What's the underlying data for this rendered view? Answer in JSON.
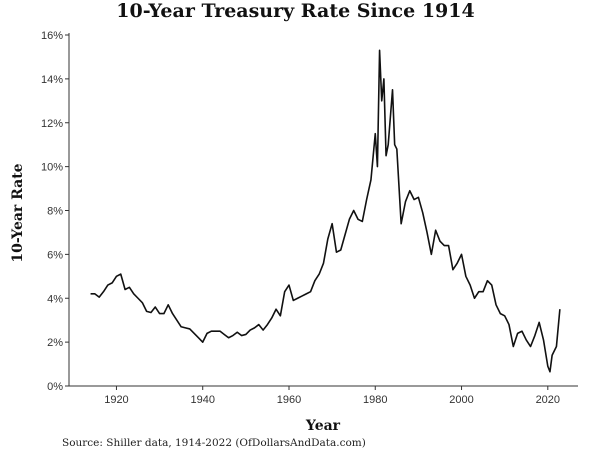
{
  "chart_data": {
    "type": "line",
    "title": "10-Year Treasury Rate Since 1914",
    "xlabel": "Year",
    "ylabel": "10-Year Rate",
    "source": "Source: Shiller data, 1914-2022 (OfDollarsAndData.com)",
    "xlim": [
      1909,
      2027
    ],
    "ylim": [
      0,
      16
    ],
    "x_ticks": [
      1920,
      1940,
      1960,
      1980,
      2000,
      2020
    ],
    "y_ticks": [
      0,
      2,
      4,
      6,
      8,
      10,
      12,
      14,
      16
    ],
    "y_tick_labels": [
      "0%",
      "2%",
      "4%",
      "6%",
      "8%",
      "10%",
      "12%",
      "14%",
      "16%"
    ],
    "grid": false,
    "series": [
      {
        "color": "#111111",
        "x": [
          1914,
          1915,
          1916,
          1917,
          1918,
          1919,
          1920,
          1921,
          1922,
          1923,
          1924,
          1925,
          1926,
          1927,
          1928,
          1929,
          1930,
          1931,
          1932,
          1933,
          1934,
          1935,
          1936,
          1937,
          1938,
          1939,
          1940,
          1941,
          1942,
          1943,
          1944,
          1945,
          1946,
          1947,
          1948,
          1949,
          1950,
          1951,
          1952,
          1953,
          1954,
          1955,
          1956,
          1957,
          1958,
          1959,
          1960,
          1961,
          1962,
          1963,
          1964,
          1965,
          1966,
          1967,
          1968,
          1969,
          1970,
          1971,
          1972,
          1973,
          1974,
          1975,
          1976,
          1977,
          1978,
          1979,
          1980,
          1980.5,
          1981,
          1981.5,
          1982,
          1982.5,
          1983,
          1984,
          1984.5,
          1985,
          1986,
          1987,
          1988,
          1989,
          1990,
          1991,
          1992,
          1993,
          1994,
          1995,
          1996,
          1997,
          1998,
          1999,
          2000,
          2001,
          2002,
          2003,
          2004,
          2005,
          2006,
          2007,
          2008,
          2009,
          2010,
          2011,
          2012,
          2013,
          2014,
          2015,
          2016,
          2017,
          2018,
          2019,
          2020,
          2020.5,
          2021,
          2022,
          2022.8
        ],
        "y": [
          4.2,
          4.2,
          4.05,
          4.3,
          4.6,
          4.7,
          5.0,
          5.1,
          4.4,
          4.5,
          4.2,
          4.0,
          3.8,
          3.4,
          3.35,
          3.6,
          3.3,
          3.3,
          3.7,
          3.3,
          3.0,
          2.7,
          2.65,
          2.6,
          2.4,
          2.2,
          2.0,
          2.4,
          2.5,
          2.5,
          2.5,
          2.35,
          2.2,
          2.3,
          2.45,
          2.3,
          2.35,
          2.55,
          2.65,
          2.8,
          2.55,
          2.8,
          3.1,
          3.5,
          3.2,
          4.3,
          4.6,
          3.9,
          4.0,
          4.1,
          4.2,
          4.3,
          4.8,
          5.1,
          5.6,
          6.7,
          7.4,
          6.1,
          6.2,
          6.9,
          7.6,
          8.0,
          7.6,
          7.5,
          8.5,
          9.4,
          11.5,
          10.0,
          15.3,
          13.0,
          14.0,
          10.5,
          11.0,
          13.5,
          11.0,
          10.8,
          7.4,
          8.4,
          8.9,
          8.5,
          8.6,
          7.9,
          7.0,
          6.0,
          7.1,
          6.6,
          6.4,
          6.4,
          5.3,
          5.6,
          6.0,
          5.0,
          4.6,
          4.0,
          4.3,
          4.3,
          4.8,
          4.6,
          3.7,
          3.3,
          3.2,
          2.8,
          1.8,
          2.4,
          2.5,
          2.1,
          1.8,
          2.3,
          2.9,
          2.1,
          0.9,
          0.65,
          1.4,
          1.8,
          3.5
        ]
      }
    ]
  }
}
